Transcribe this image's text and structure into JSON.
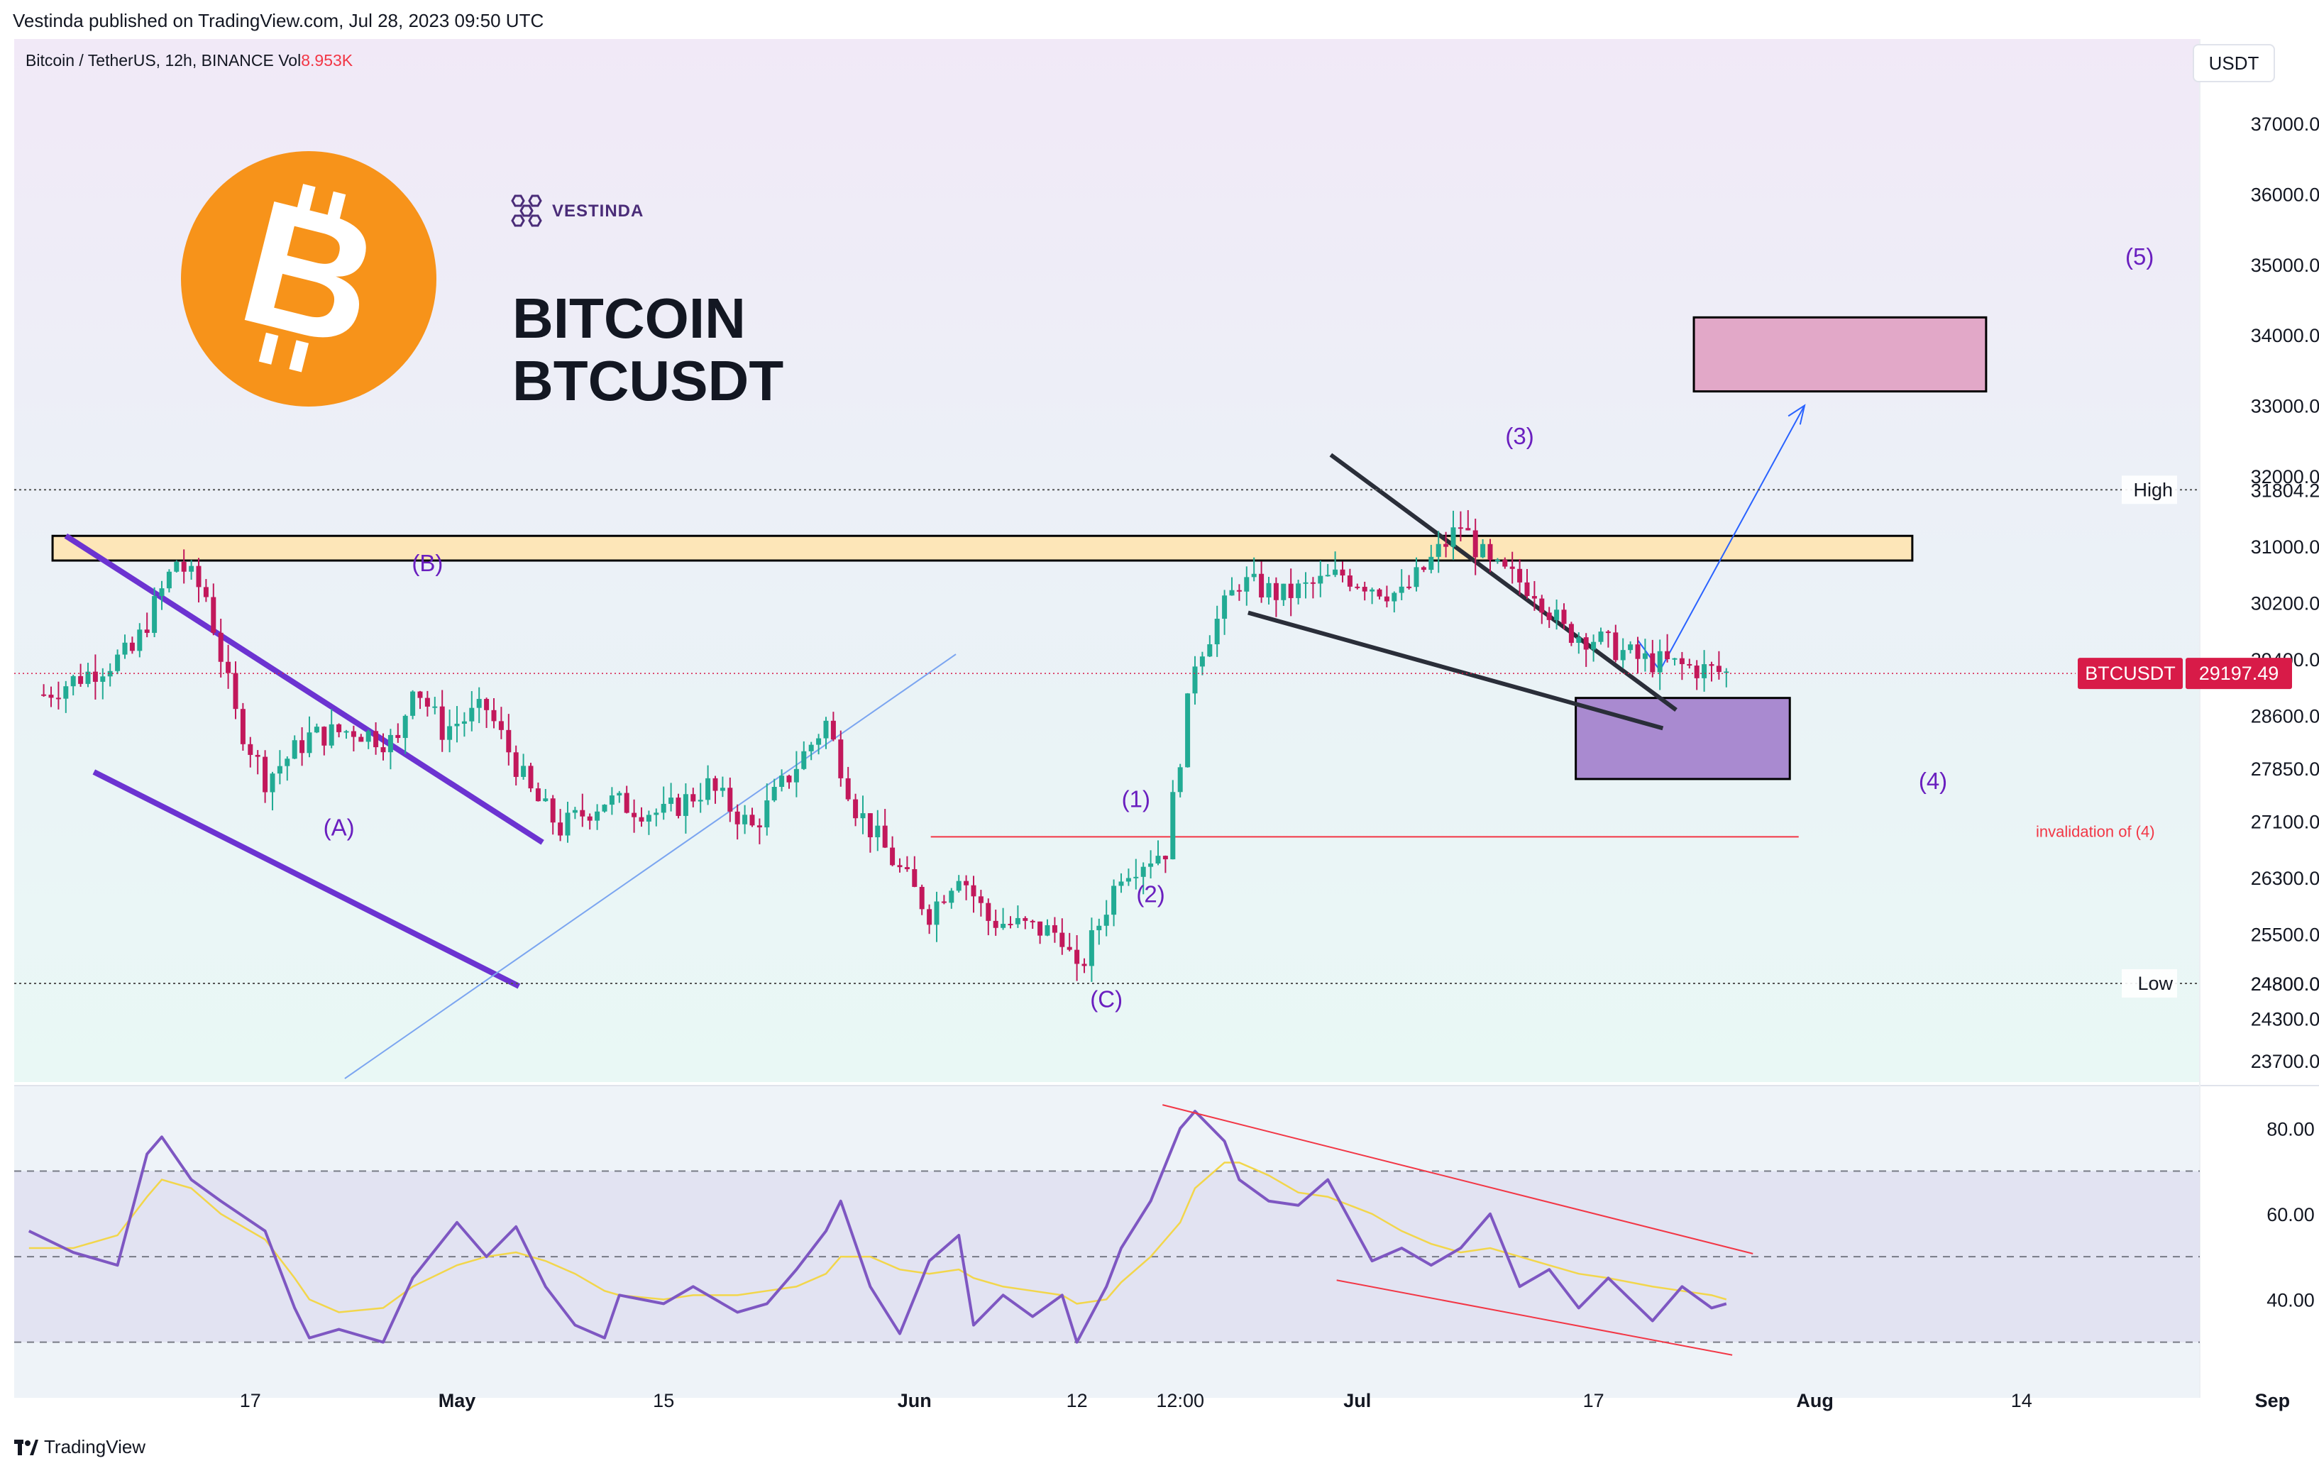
{
  "publisher": "Vestinda published on TradingView.com, Jul 28, 2023 09:50 UTC",
  "symbol": {
    "name": "Bitcoin / TetherUS, 12h, BINANCE",
    "vol_label": "Vol",
    "vol_value": "8.953K"
  },
  "currency": "USDT",
  "brand": {
    "line1": "BITCOIN",
    "line2": "BTCUSDT",
    "watermark": "VESTINDA",
    "footer": "TradingView"
  },
  "colors": {
    "bull": "#22ab94",
    "bear": "#c2185b",
    "wave_label": "#6a1fbf",
    "channel": "#6c33d1",
    "resistance_fill": "#fde6b8",
    "target_fill": "#e2a8c8",
    "support_fill": "#a98ad0",
    "rsi": "#7e57c2",
    "rsi_ma": "#f2d64b",
    "price_tag": "#d81b48",
    "bitcoin_orange": "#f7931a"
  },
  "chart_data": {
    "type": "candlestick",
    "timeframe": "12h",
    "price_axis": {
      "labels": [
        "37000.00",
        "36000.00",
        "35000.00",
        "34000.00",
        "33000.00",
        "32000.00",
        "31000.00",
        "30200.00",
        "29400.00",
        "28600.00",
        "27850.00",
        "27100.00",
        "26300.00",
        "25500.00",
        "24800.00",
        "24300.00",
        "23700.00"
      ],
      "ylim": [
        23400,
        38200
      ]
    },
    "time_axis": {
      "labels": [
        "17",
        "May",
        "15",
        "Jun",
        "12",
        "12:00",
        "Jul",
        "17",
        "Aug",
        "14",
        "Sep"
      ],
      "label_days": [
        16,
        30,
        44,
        61,
        72,
        79,
        91,
        107,
        122,
        136,
        153
      ]
    },
    "markers": {
      "high": {
        "label": "High",
        "value": "31804.20",
        "price": 31804.2
      },
      "low": {
        "label": "Low",
        "value": "24800.00",
        "price": 24800
      },
      "last": {
        "label": "BTCUSDT",
        "value": "29197.49",
        "price": 29197.49
      }
    },
    "close_path": {
      "day": [
        2,
        8,
        11,
        13,
        15,
        17,
        20,
        23,
        26,
        27,
        29,
        32,
        35,
        37,
        40,
        44,
        47,
        50,
        55,
        57,
        62,
        64,
        66,
        71,
        72,
        75,
        78,
        80,
        83,
        86,
        90,
        94,
        98,
        100,
        103,
        105,
        107,
        110,
        113,
        116
      ],
      "price": [
        28900,
        29500,
        30800,
        30300,
        28600,
        27700,
        28300,
        28400,
        28200,
        29100,
        28400,
        28700,
        27500,
        27000,
        27400,
        27200,
        27600,
        27000,
        28500,
        27300,
        25800,
        26400,
        25700,
        25500,
        24900,
        26400,
        26700,
        29400,
        30500,
        30300,
        30600,
        30300,
        31300,
        30700,
        30400,
        29800,
        29700,
        29400,
        29300,
        29200
      ]
    },
    "annotations": [
      {
        "label": "(A)",
        "day": 22,
        "price": 26900
      },
      {
        "label": "(B)",
        "day": 28,
        "price": 30650
      },
      {
        "label": "(C)",
        "day": 74,
        "price": 24460
      },
      {
        "label": "(1)",
        "day": 76,
        "price": 27300
      },
      {
        "label": "(2)",
        "day": 77,
        "price": 25950
      },
      {
        "label": "(3)",
        "day": 102,
        "price": 32450
      },
      {
        "label": "(4)",
        "day": 130,
        "price": 27560
      },
      {
        "label": "(5)",
        "day": 144,
        "price": 35000
      },
      {
        "label": "invalidation of (4)",
        "day": 141,
        "price": 26880
      }
    ],
    "levels": {
      "resistance_zone": [
        30800,
        31150
      ],
      "target_zone": [
        33200,
        34250
      ],
      "support_zone": [
        27700,
        28850
      ],
      "invalidation": 26880
    },
    "rsi": {
      "axis_labels": [
        "80.00",
        "60.00",
        "40.00"
      ],
      "ylim": [
        17,
        90
      ],
      "bands": [
        70,
        50,
        30
      ],
      "day": [
        1,
        4,
        7,
        9,
        10,
        12,
        14,
        17,
        19,
        20,
        22,
        25,
        27,
        30,
        32,
        34,
        36,
        38,
        40,
        41,
        44,
        46,
        49,
        51,
        53,
        55,
        56,
        58,
        60,
        62,
        64,
        65,
        67,
        69,
        71,
        72,
        74,
        75,
        77,
        79,
        80,
        82,
        83,
        85,
        87,
        89,
        92,
        94,
        96,
        98,
        100,
        102,
        104,
        106,
        108,
        111,
        113,
        115,
        116
      ],
      "values": [
        56,
        51,
        48,
        74,
        78,
        68,
        63,
        56,
        38,
        31,
        33,
        30,
        45,
        58,
        50,
        57,
        43,
        34,
        31,
        41,
        39,
        43,
        37,
        39,
        47,
        56,
        63,
        43,
        32,
        49,
        55,
        34,
        41,
        36,
        41,
        30,
        43,
        52,
        63,
        80,
        84,
        77,
        68,
        63,
        62,
        68,
        49,
        52,
        48,
        52,
        60,
        43,
        47,
        38,
        45,
        35,
        43,
        38,
        39
      ],
      "ma": [
        52,
        52,
        55,
        64,
        68,
        66,
        60,
        54,
        45,
        40,
        37,
        38,
        43,
        48,
        50,
        51,
        49,
        46,
        42,
        41,
        40,
        41,
        41,
        42,
        43,
        46,
        50,
        50,
        47,
        46,
        47,
        45,
        43,
        42,
        41,
        39,
        40,
        44,
        50,
        58,
        66,
        72,
        72,
        69,
        65,
        64,
        60,
        56,
        53,
        51,
        52,
        50,
        48,
        46,
        45,
        43,
        42,
        41,
        40
      ]
    }
  }
}
